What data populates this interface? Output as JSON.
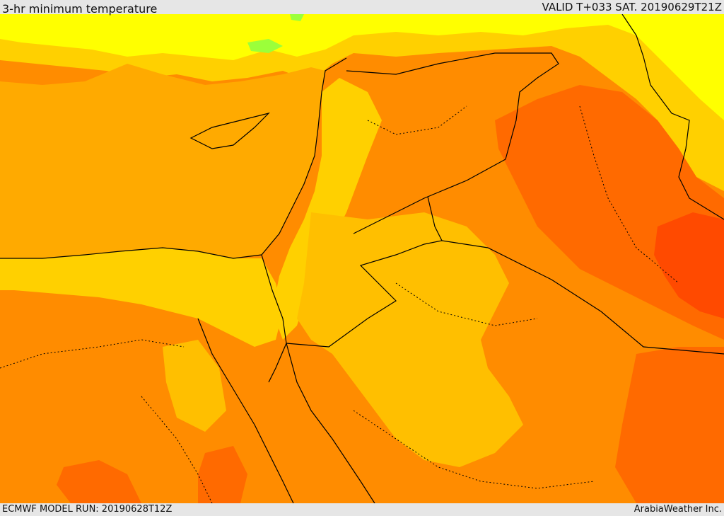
{
  "header": {
    "title": "3-hr minimum temperature",
    "valid": "VALID T+033 SAT. 20190629T21Z"
  },
  "footer": {
    "model_run": "ECMWF MODEL RUN: 20190628T12Z",
    "credit": "ArabiaWeather Inc."
  },
  "map": {
    "palette": {
      "sea": "#ffaa00",
      "cool": "#ffd000",
      "mild": "#ffbf00",
      "warm": "#ff8c00",
      "hot": "#ff6a00",
      "hotter": "#ff4a00",
      "yellow": "#ffff00",
      "green": "#9bff3a",
      "border": "#000000"
    }
  }
}
